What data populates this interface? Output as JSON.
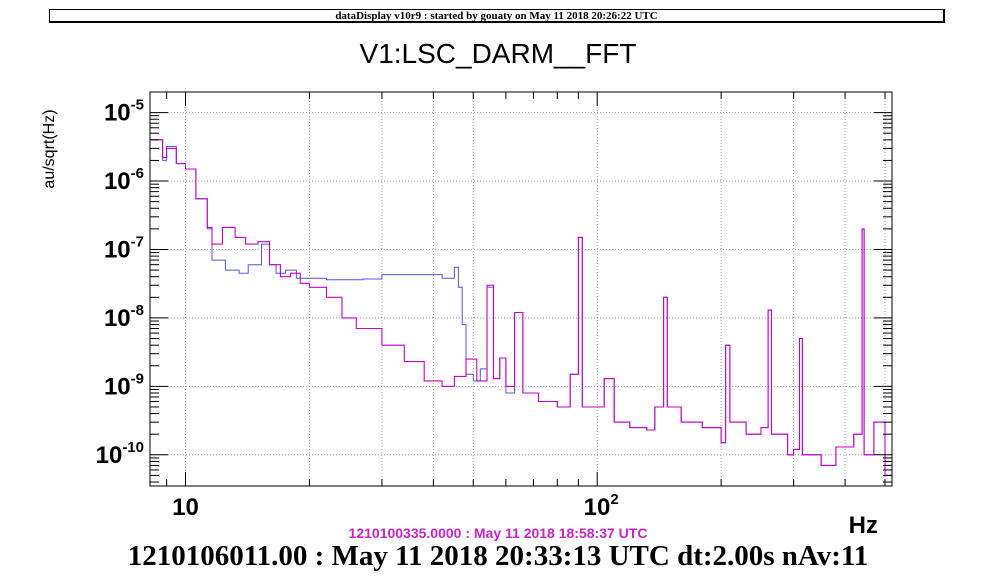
{
  "header": {
    "banner": "dataDisplay v10r9 : started by gouaty on May 11 2018 20:26:22 UTC"
  },
  "chart_data": {
    "type": "line",
    "title": "V1:LSC_DARM__FFT",
    "ylabel": "au/sqrt(Hz)",
    "xlabel": "Hz",
    "xscale": "log",
    "yscale": "log",
    "xlim": [
      8.2,
      520
    ],
    "ylim": [
      3.5e-11,
      2e-05
    ],
    "grid": true,
    "x_tick_labels": [
      {
        "value": 10,
        "base": "10",
        "exp": ""
      },
      {
        "value": 100,
        "base": "10",
        "exp": "2"
      }
    ],
    "y_tick_labels": [
      {
        "value": 1e-05,
        "base": "10",
        "exp": "-5"
      },
      {
        "value": 1e-06,
        "base": "10",
        "exp": "-6"
      },
      {
        "value": 1e-07,
        "base": "10",
        "exp": "-7"
      },
      {
        "value": 1e-08,
        "base": "10",
        "exp": "-8"
      },
      {
        "value": 1e-09,
        "base": "10",
        "exp": "-9"
      },
      {
        "value": 1e-10,
        "base": "10",
        "exp": "-10"
      }
    ],
    "series": [
      {
        "color": "#5555ee",
        "points": [
          [
            8.2,
            4e-06
          ],
          [
            8.8,
            2e-06
          ],
          [
            9.0,
            3.2e-06
          ],
          [
            9.5,
            1.8e-06
          ],
          [
            10.0,
            1.5e-06
          ],
          [
            10.6,
            5.5e-07
          ],
          [
            11.3,
            2e-07
          ],
          [
            11.6,
            7e-08
          ],
          [
            12.5,
            5e-08
          ],
          [
            13.5,
            4.5e-08
          ],
          [
            14.2,
            6e-08
          ],
          [
            15.3,
            1.2e-07
          ],
          [
            16.0,
            6e-08
          ],
          [
            16.6,
            4.5e-08
          ],
          [
            17.5,
            5e-08
          ],
          [
            18.6,
            3.8e-08
          ],
          [
            22,
            3.6e-08
          ],
          [
            27,
            3.7e-08
          ],
          [
            30,
            4.3e-08
          ],
          [
            35,
            4.3e-08
          ],
          [
            42,
            3.8e-08
          ],
          [
            45,
            5.5e-08
          ],
          [
            46,
            2.8e-08
          ],
          [
            47,
            8e-09
          ],
          [
            48,
            1.5e-09
          ],
          [
            50,
            1.2e-09
          ],
          [
            52,
            1.8e-09
          ],
          [
            54,
            2.8e-08
          ],
          [
            56,
            1.3e-09
          ],
          [
            58,
            2.6e-09
          ],
          [
            60,
            8e-10
          ],
          [
            63,
            1.2e-08
          ],
          [
            66,
            8e-10
          ],
          [
            72,
            6e-10
          ],
          [
            80,
            5e-10
          ],
          [
            86,
            1.5e-09
          ],
          [
            90,
            1.5e-07
          ],
          [
            92,
            5e-10
          ],
          [
            100,
            5e-10
          ],
          [
            104,
            1.3e-09
          ],
          [
            110,
            3e-10
          ],
          [
            120,
            2.5e-10
          ],
          [
            132,
            2.3e-10
          ],
          [
            138,
            5e-10
          ],
          [
            145,
            2e-08
          ],
          [
            148,
            5e-10
          ],
          [
            160,
            3e-10
          ],
          [
            180,
            2.5e-10
          ],
          [
            200,
            1.5e-10
          ],
          [
            205,
            4e-09
          ],
          [
            210,
            3e-10
          ],
          [
            230,
            2e-10
          ],
          [
            250,
            2.5e-10
          ],
          [
            260,
            1.3e-08
          ],
          [
            265,
            2e-10
          ],
          [
            290,
            1e-10
          ],
          [
            300,
            1.2e-10
          ],
          [
            310,
            5e-09
          ],
          [
            315,
            1e-10
          ],
          [
            350,
            7e-11
          ],
          [
            380,
            1.3e-10
          ],
          [
            420,
            2e-10
          ],
          [
            440,
            2e-07
          ],
          [
            445,
            1e-10
          ],
          [
            470,
            3e-10
          ],
          [
            500,
            5e-11
          ],
          [
            520,
            6e-11
          ]
        ]
      },
      {
        "color": "#cc00cc",
        "points": [
          [
            8.2,
            4e-06
          ],
          [
            8.8,
            2.2e-06
          ],
          [
            9.0,
            3e-06
          ],
          [
            9.5,
            1.8e-06
          ],
          [
            10.0,
            1.5e-06
          ],
          [
            10.6,
            5.5e-07
          ],
          [
            11.3,
            2.1e-07
          ],
          [
            11.6,
            1.2e-07
          ],
          [
            12.3,
            2.1e-07
          ],
          [
            13.2,
            1.5e-07
          ],
          [
            14.0,
            1.2e-07
          ],
          [
            15.0,
            1.3e-07
          ],
          [
            16.0,
            6e-08
          ],
          [
            17.0,
            4e-08
          ],
          [
            18.0,
            4.5e-08
          ],
          [
            19.0,
            3.2e-08
          ],
          [
            20,
            2.8e-08
          ],
          [
            22,
            2e-08
          ],
          [
            24,
            1e-08
          ],
          [
            26,
            7e-09
          ],
          [
            30,
            4e-09
          ],
          [
            34,
            2.3e-09
          ],
          [
            38,
            1.2e-09
          ],
          [
            42,
            1e-09
          ],
          [
            45,
            1.4e-09
          ],
          [
            48,
            2.5e-09
          ],
          [
            51,
            1.2e-09
          ],
          [
            54,
            3e-08
          ],
          [
            56,
            1.3e-09
          ],
          [
            58,
            2.6e-09
          ],
          [
            60,
            1e-09
          ],
          [
            63,
            1.2e-08
          ],
          [
            66,
            8e-10
          ],
          [
            72,
            6e-10
          ],
          [
            80,
            5e-10
          ],
          [
            86,
            1.5e-09
          ],
          [
            90,
            1.5e-07
          ],
          [
            92,
            5e-10
          ],
          [
            100,
            5e-10
          ],
          [
            104,
            1.3e-09
          ],
          [
            110,
            3e-10
          ],
          [
            120,
            2.5e-10
          ],
          [
            132,
            2.3e-10
          ],
          [
            138,
            5e-10
          ],
          [
            145,
            2e-08
          ],
          [
            148,
            5e-10
          ],
          [
            160,
            3e-10
          ],
          [
            180,
            2.5e-10
          ],
          [
            200,
            1.5e-10
          ],
          [
            205,
            4e-09
          ],
          [
            210,
            3e-10
          ],
          [
            230,
            2e-10
          ],
          [
            250,
            2.5e-10
          ],
          [
            260,
            1.3e-08
          ],
          [
            265,
            2e-10
          ],
          [
            290,
            1e-10
          ],
          [
            300,
            1.2e-10
          ],
          [
            310,
            5e-09
          ],
          [
            315,
            1e-10
          ],
          [
            350,
            7e-11
          ],
          [
            380,
            1.3e-10
          ],
          [
            420,
            2e-10
          ],
          [
            440,
            2e-07
          ],
          [
            445,
            1e-10
          ],
          [
            470,
            3e-10
          ],
          [
            500,
            5e-11
          ],
          [
            520,
            6e-11
          ]
        ]
      }
    ]
  },
  "footer": {
    "reference_timestamp": "1210100335.0000 : May 11 2018 18:58:37 UTC",
    "status": "1210106011.00 : May 11 2018 20:33:13 UTC dt:2.00s nAv:11"
  }
}
